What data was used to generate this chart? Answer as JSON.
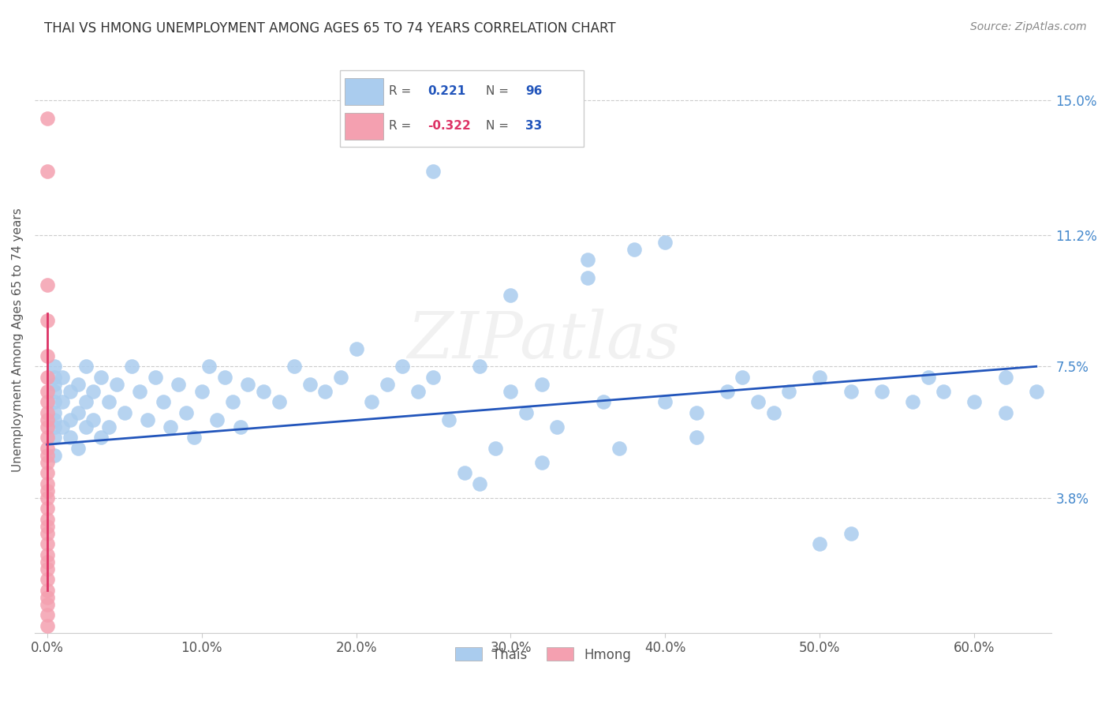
{
  "title": "THAI VS HMONG UNEMPLOYMENT AMONG AGES 65 TO 74 YEARS CORRELATION CHART",
  "source": "Source: ZipAtlas.com",
  "ylabel": "Unemployment Among Ages 65 to 74 years",
  "ylim": [
    0.0,
    0.165
  ],
  "xlim": [
    -0.008,
    0.65
  ],
  "ytick_vals": [
    0.038,
    0.075,
    0.112,
    0.15
  ],
  "ytick_labels": [
    "3.8%",
    "7.5%",
    "11.2%",
    "15.0%"
  ],
  "xtick_vals": [
    0.0,
    0.1,
    0.2,
    0.3,
    0.4,
    0.5,
    0.6
  ],
  "xtick_labels": [
    "0.0%",
    "10.0%",
    "20.0%",
    "30.0%",
    "40.0%",
    "50.0%",
    "60.0%"
  ],
  "grid_color": "#cccccc",
  "bg_color": "#ffffff",
  "thai_color": "#aaccee",
  "hmong_color": "#f4a0b0",
  "thai_line_color": "#2255bb",
  "hmong_line_color": "#dd3366",
  "legend_R_thai": "0.221",
  "legend_N_thai": "96",
  "legend_R_hmong": "-0.322",
  "legend_N_hmong": "33",
  "watermark": "ZIPatlas",
  "thai_scatter_x": [
    0.005,
    0.005,
    0.005,
    0.005,
    0.005,
    0.005,
    0.005,
    0.005,
    0.005,
    0.005,
    0.01,
    0.01,
    0.01,
    0.015,
    0.015,
    0.015,
    0.02,
    0.02,
    0.02,
    0.025,
    0.025,
    0.025,
    0.03,
    0.03,
    0.035,
    0.035,
    0.04,
    0.04,
    0.045,
    0.05,
    0.055,
    0.06,
    0.065,
    0.07,
    0.075,
    0.08,
    0.085,
    0.09,
    0.095,
    0.1,
    0.105,
    0.11,
    0.115,
    0.12,
    0.125,
    0.13,
    0.14,
    0.15,
    0.16,
    0.17,
    0.18,
    0.19,
    0.2,
    0.21,
    0.22,
    0.23,
    0.24,
    0.25,
    0.26,
    0.27,
    0.28,
    0.29,
    0.3,
    0.31,
    0.32,
    0.33,
    0.35,
    0.36,
    0.38,
    0.4,
    0.42,
    0.44,
    0.46,
    0.48,
    0.5,
    0.52,
    0.54,
    0.56,
    0.58,
    0.6,
    0.62,
    0.64,
    0.3,
    0.25,
    0.35,
    0.4,
    0.45,
    0.5,
    0.28,
    0.32,
    0.37,
    0.42,
    0.47,
    0.52,
    0.57,
    0.62
  ],
  "thai_scatter_y": [
    0.06,
    0.065,
    0.07,
    0.075,
    0.055,
    0.062,
    0.068,
    0.058,
    0.072,
    0.05,
    0.058,
    0.065,
    0.072,
    0.06,
    0.068,
    0.055,
    0.062,
    0.07,
    0.052,
    0.065,
    0.058,
    0.075,
    0.068,
    0.06,
    0.072,
    0.055,
    0.065,
    0.058,
    0.07,
    0.062,
    0.075,
    0.068,
    0.06,
    0.072,
    0.065,
    0.058,
    0.07,
    0.062,
    0.055,
    0.068,
    0.075,
    0.06,
    0.072,
    0.065,
    0.058,
    0.07,
    0.068,
    0.065,
    0.075,
    0.07,
    0.068,
    0.072,
    0.08,
    0.065,
    0.07,
    0.075,
    0.068,
    0.072,
    0.06,
    0.045,
    0.075,
    0.052,
    0.068,
    0.062,
    0.07,
    0.058,
    0.1,
    0.065,
    0.108,
    0.065,
    0.062,
    0.068,
    0.065,
    0.068,
    0.025,
    0.028,
    0.068,
    0.065,
    0.068,
    0.065,
    0.062,
    0.068,
    0.095,
    0.13,
    0.105,
    0.11,
    0.072,
    0.072,
    0.042,
    0.048,
    0.052,
    0.055,
    0.062,
    0.068,
    0.072,
    0.072
  ],
  "hmong_scatter_x": [
    0.0,
    0.0,
    0.0,
    0.0,
    0.0,
    0.0,
    0.0,
    0.0,
    0.0,
    0.0,
    0.0,
    0.0,
    0.0,
    0.0,
    0.0,
    0.0,
    0.0,
    0.0,
    0.0,
    0.0,
    0.0,
    0.0,
    0.0,
    0.0,
    0.0,
    0.0,
    0.0,
    0.0,
    0.0,
    0.0,
    0.0,
    0.0,
    0.0
  ],
  "hmong_scatter_y": [
    0.145,
    0.13,
    0.098,
    0.088,
    0.078,
    0.072,
    0.068,
    0.065,
    0.062,
    0.06,
    0.058,
    0.055,
    0.052,
    0.05,
    0.048,
    0.045,
    0.042,
    0.04,
    0.038,
    0.035,
    0.032,
    0.03,
    0.028,
    0.025,
    0.022,
    0.02,
    0.018,
    0.015,
    0.012,
    0.01,
    0.008,
    0.005,
    0.002
  ],
  "thai_trendline_x": [
    0.0,
    0.64
  ],
  "thai_trendline_y": [
    0.053,
    0.075
  ],
  "hmong_trendline_x": [
    0.0,
    0.0
  ],
  "hmong_trendline_y": [
    0.09,
    0.012
  ]
}
